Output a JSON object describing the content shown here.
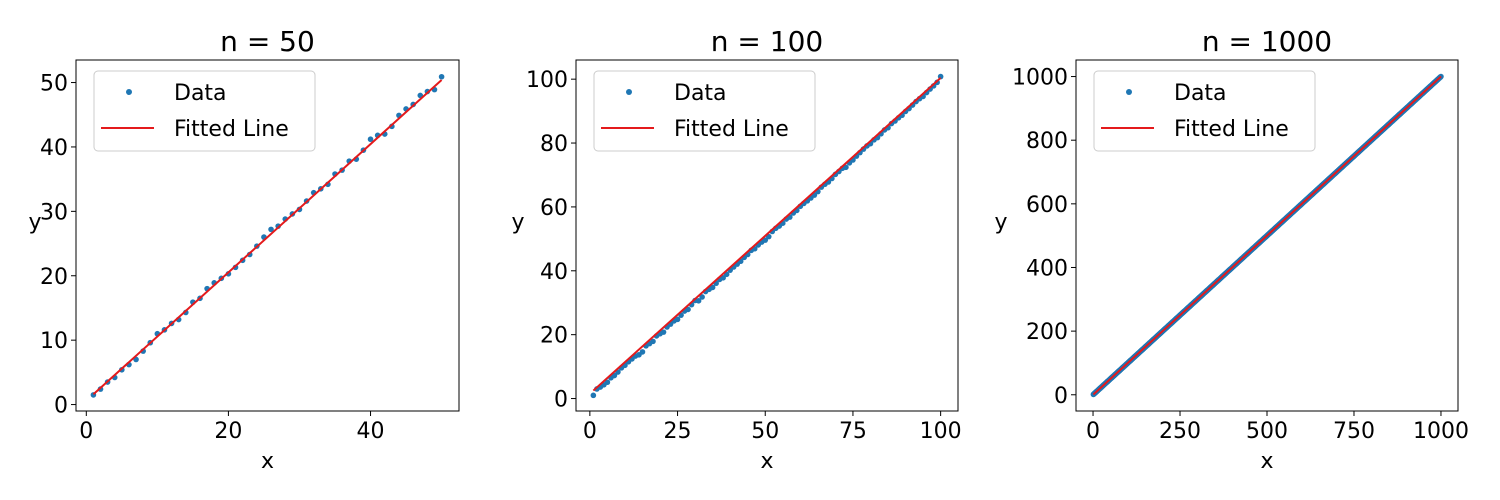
{
  "chart_data": [
    {
      "type": "scatter",
      "title": "n = 50",
      "xlabel": "x",
      "ylabel": "y",
      "xlim": [
        -1.45,
        52.45
      ],
      "ylim": [
        -1.0,
        53.5
      ],
      "xticks": [
        0,
        20,
        40
      ],
      "xtick_labels": [
        "0",
        "20",
        "40"
      ],
      "yticks": [
        0,
        10,
        20,
        30,
        40,
        50
      ],
      "ytick_labels": [
        "0",
        "10",
        "20",
        "30",
        "40",
        "50"
      ],
      "grid": false,
      "legend": {
        "position": "top-left",
        "entries": [
          {
            "label": "Data",
            "kind": "marker"
          },
          {
            "label": "Fitted Line",
            "kind": "line"
          }
        ]
      },
      "series": [
        {
          "name": "Data",
          "kind": "scatter",
          "color": "#1f77b4",
          "x": [
            1,
            2,
            3,
            4,
            5,
            6,
            7,
            8,
            9,
            10,
            11,
            12,
            13,
            14,
            15,
            16,
            17,
            18,
            19,
            20,
            21,
            22,
            23,
            24,
            25,
            26,
            27,
            28,
            29,
            30,
            31,
            32,
            33,
            34,
            35,
            36,
            37,
            38,
            39,
            40,
            41,
            42,
            43,
            44,
            45,
            46,
            47,
            48,
            49,
            50
          ],
          "y": [
            1.5,
            2.4,
            3.5,
            4.2,
            5.4,
            6.2,
            7.0,
            8.3,
            9.6,
            11.0,
            11.6,
            12.6,
            13.2,
            14.3,
            15.9,
            16.5,
            18.0,
            18.9,
            19.6,
            20.3,
            21.3,
            22.4,
            23.3,
            24.6,
            26.0,
            27.2,
            27.7,
            28.8,
            29.6,
            30.3,
            31.6,
            32.9,
            33.5,
            34.2,
            35.8,
            36.4,
            37.8,
            38.1,
            39.5,
            41.2,
            41.8,
            42.0,
            43.2,
            44.9,
            45.9,
            46.6,
            48.0,
            48.6,
            48.9,
            50.9
          ]
        },
        {
          "name": "Fitted Line",
          "kind": "line",
          "color": "#e41a1c",
          "x": [
            1,
            50
          ],
          "y": [
            1.6,
            50.4
          ]
        }
      ]
    },
    {
      "type": "scatter",
      "title": "n = 100",
      "xlabel": "x",
      "ylabel": "y",
      "xlim": [
        -3.95,
        104.95
      ],
      "ylim": [
        -3.9,
        106.0
      ],
      "xticks": [
        0,
        25,
        50,
        75,
        100
      ],
      "xtick_labels": [
        "0",
        "25",
        "50",
        "75",
        "100"
      ],
      "yticks": [
        0,
        20,
        40,
        60,
        80,
        100
      ],
      "ytick_labels": [
        "0",
        "20",
        "40",
        "60",
        "80",
        "100"
      ],
      "grid": false,
      "legend": {
        "position": "top-left",
        "entries": [
          {
            "label": "Data",
            "kind": "marker"
          },
          {
            "label": "Fitted Line",
            "kind": "line"
          }
        ]
      },
      "series": [
        {
          "name": "Data",
          "kind": "scatter",
          "color": "#1f77b4",
          "x": [
            1,
            2,
            3,
            4,
            5,
            6,
            7,
            8,
            9,
            10,
            11,
            12,
            13,
            14,
            15,
            16,
            17,
            18,
            19,
            20,
            21,
            22,
            23,
            24,
            25,
            26,
            27,
            28,
            29,
            30,
            31,
            32,
            33,
            34,
            35,
            36,
            37,
            38,
            39,
            40,
            41,
            42,
            43,
            44,
            45,
            46,
            47,
            48,
            49,
            50,
            51,
            52,
            53,
            54,
            55,
            56,
            57,
            58,
            59,
            60,
            61,
            62,
            63,
            64,
            65,
            66,
            67,
            68,
            69,
            70,
            71,
            72,
            73,
            74,
            75,
            76,
            77,
            78,
            79,
            80,
            81,
            82,
            83,
            84,
            85,
            86,
            87,
            88,
            89,
            90,
            91,
            92,
            93,
            94,
            95,
            96,
            97,
            98,
            99,
            100
          ],
          "y": [
            1.0,
            3.0,
            3.6,
            4.3,
            5.1,
            6.5,
            7.2,
            8.3,
            9.6,
            10.4,
            11.5,
            12.4,
            13.3,
            13.7,
            14.6,
            16.5,
            17.2,
            17.9,
            19.6,
            20.3,
            20.8,
            22.4,
            23.3,
            24.3,
            24.8,
            26.1,
            27.4,
            27.9,
            29.4,
            30.7,
            30.6,
            31.8,
            33.5,
            34.2,
            34.8,
            36.1,
            37.3,
            37.8,
            38.9,
            40.2,
            41.2,
            42.1,
            43.0,
            44.2,
            45.1,
            46.4,
            46.9,
            48.1,
            49.0,
            49.6,
            50.7,
            52.3,
            53.3,
            54.0,
            54.9,
            56.2,
            56.8,
            58.1,
            58.9,
            60.2,
            61.1,
            61.9,
            62.8,
            63.7,
            64.8,
            66.2,
            67.1,
            67.8,
            68.9,
            70.2,
            71.1,
            72.1,
            72.4,
            73.8,
            74.7,
            75.9,
            77.0,
            78.1,
            79.1,
            79.8,
            81.0,
            81.7,
            82.9,
            84.1,
            84.8,
            86.1,
            86.9,
            87.9,
            88.7,
            89.9,
            90.8,
            91.9,
            93.0,
            93.9,
            94.6,
            95.8,
            96.9,
            97.9,
            99.0,
            100.8
          ]
        },
        {
          "name": "Fitted Line",
          "kind": "line",
          "color": "#e41a1c",
          "x": [
            1,
            100
          ],
          "y": [
            2.5,
            100.4
          ]
        }
      ]
    },
    {
      "type": "scatter",
      "title": "n = 1000",
      "xlabel": "x",
      "ylabel": "y",
      "xlim": [
        -48.95,
        1048.95
      ],
      "ylim": [
        -51.0,
        1052.0
      ],
      "xticks": [
        0,
        250,
        500,
        750,
        1000
      ],
      "xtick_labels": [
        "0",
        "250",
        "500",
        "750",
        "1000"
      ],
      "yticks": [
        0,
        200,
        400,
        600,
        800,
        1000
      ],
      "ytick_labels": [
        "0",
        "200",
        "400",
        "600",
        "800",
        "1000"
      ],
      "grid": false,
      "legend": {
        "position": "top-left",
        "entries": [
          {
            "label": "Data",
            "kind": "marker"
          },
          {
            "label": "Fitted Line",
            "kind": "line"
          }
        ]
      },
      "series": [
        {
          "name": "Data",
          "kind": "scatter",
          "color": "#1f77b4",
          "x_range": [
            1,
            1000
          ],
          "y_range": [
            1,
            1000
          ],
          "points": 1000,
          "pattern": "y ≈ x"
        },
        {
          "name": "Fitted Line",
          "kind": "line",
          "color": "#e41a1c",
          "x": [
            1,
            1000
          ],
          "y": [
            1,
            1000
          ]
        }
      ]
    }
  ]
}
